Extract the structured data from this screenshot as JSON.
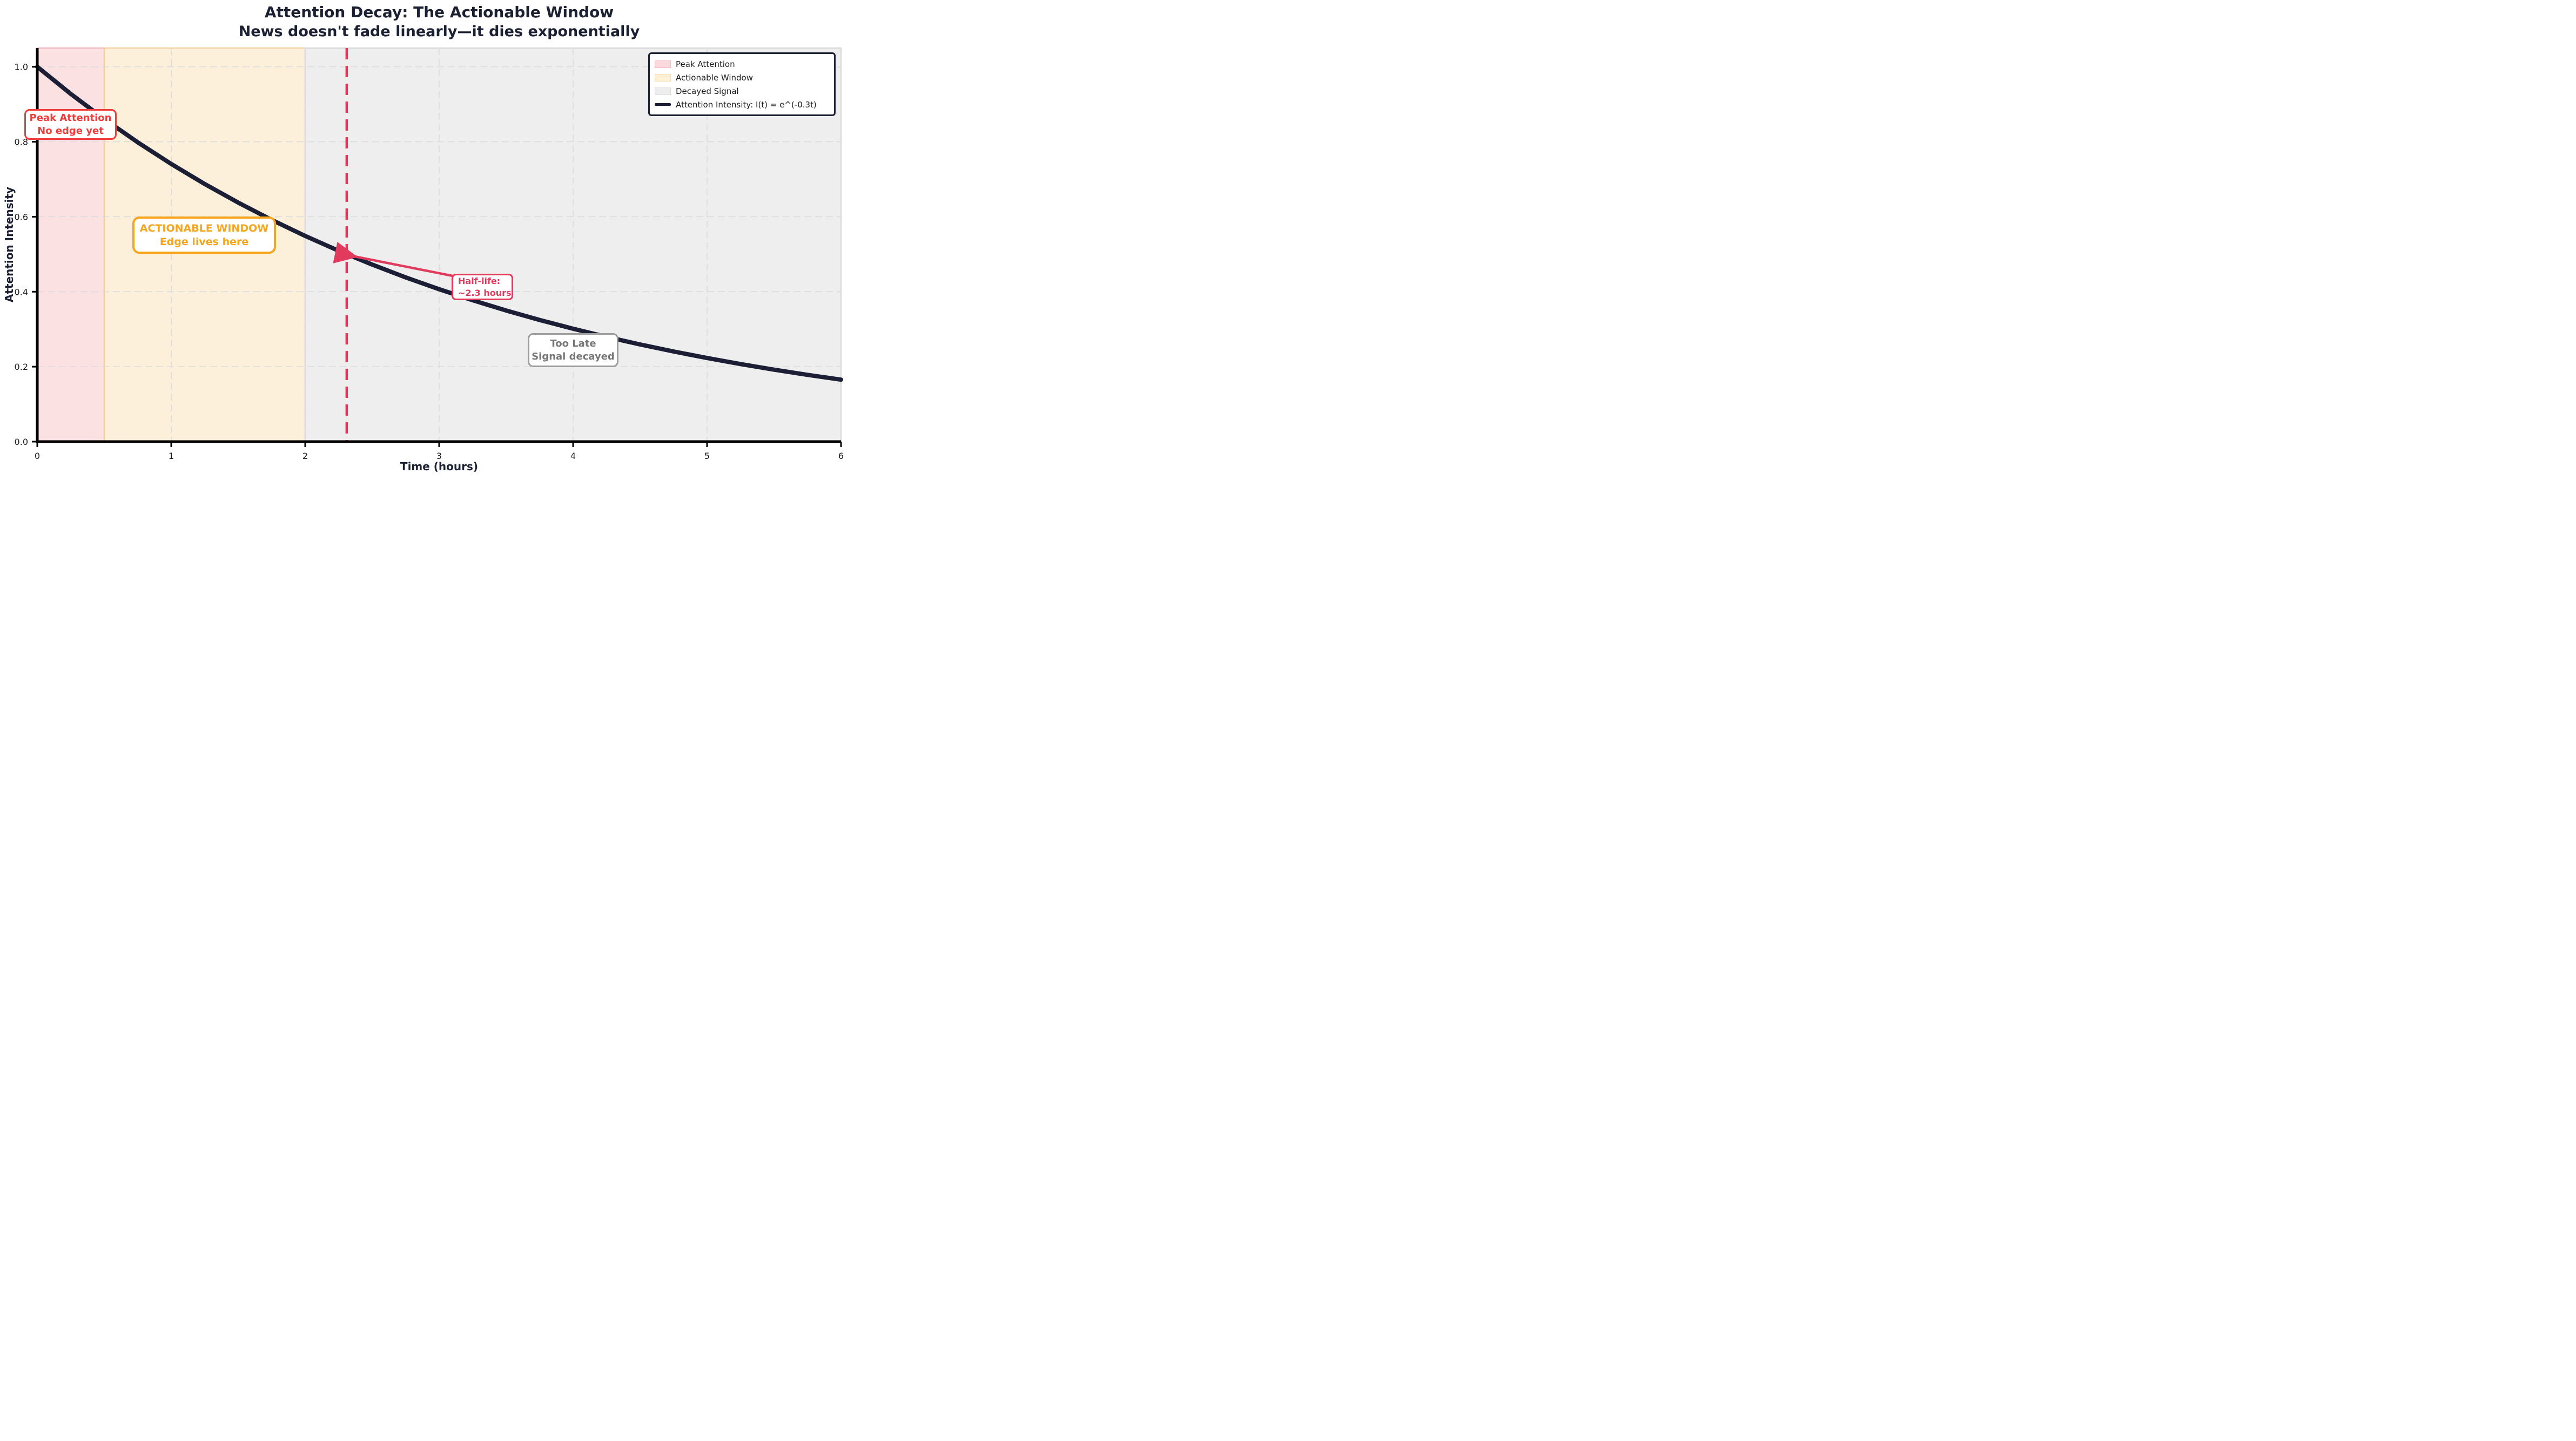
{
  "title": {
    "line1": "Attention Decay: The Actionable Window",
    "line2": "News doesn't fade linearly—it dies exponentially",
    "color": "#1c2033"
  },
  "axes": {
    "xlabel": "Time (hours)",
    "ylabel": "Attention Intensity",
    "label_color": "#1c2033",
    "tick_label_color": "#1a1a1a",
    "spine_color": "#000000",
    "grid_color": "#dcdcdc"
  },
  "chart_data": {
    "type": "line",
    "title": "Attention Decay: The Actionable Window",
    "subtitle": "News doesn't fade linearly—it dies exponentially",
    "xlabel": "Time (hours)",
    "ylabel": "Attention Intensity",
    "xlim": [
      0,
      6
    ],
    "ylim": [
      0,
      1.05
    ],
    "x_ticks": [
      "0",
      "1",
      "2",
      "3",
      "4",
      "5",
      "6"
    ],
    "x_tick_values": [
      0,
      1,
      2,
      3,
      4,
      5,
      6
    ],
    "y_ticks": [
      "0.0",
      "0.2",
      "0.4",
      "0.6",
      "0.8",
      "1.0"
    ],
    "y_tick_values": [
      0.0,
      0.2,
      0.4,
      0.6,
      0.8,
      1.0
    ],
    "grid": true,
    "legend_position": "upper right",
    "series": [
      {
        "name": "Attention Intensity: I(t) = e^(-0.3t)",
        "formula": "I(t) = e^(-0.3t)",
        "decay_rate": 0.3,
        "color": "#1b1e34",
        "x": [
          0,
          0.25,
          0.5,
          0.75,
          1,
          1.25,
          1.5,
          1.75,
          2,
          2.25,
          2.5,
          2.75,
          3,
          3.25,
          3.5,
          3.75,
          4,
          4.25,
          4.5,
          4.75,
          5,
          5.25,
          5.5,
          5.75,
          6
        ],
        "values": [
          1.0,
          0.9277,
          0.8607,
          0.7985,
          0.7408,
          0.6873,
          0.6376,
          0.5916,
          0.5488,
          0.5092,
          0.4724,
          0.4382,
          0.4066,
          0.3772,
          0.3499,
          0.3247,
          0.3012,
          0.2794,
          0.2592,
          0.2405,
          0.2231,
          0.207,
          0.192,
          0.1782,
          0.1653
        ]
      }
    ],
    "regions": [
      {
        "name": "Peak Attention",
        "from": 0,
        "to": 0.5,
        "fill": "#fce1e3",
        "edge": "#f5b9c0"
      },
      {
        "name": "Actionable Window",
        "from": 0.5,
        "to": 2,
        "fill": "#fdf0db",
        "edge": "#f7cfa0"
      },
      {
        "name": "Decayed Signal",
        "from": 2,
        "to": 6,
        "fill": "#eeeeef",
        "edge": "#d9d9d9"
      }
    ],
    "halflife_line": {
      "x": 2.31,
      "color": "#e23a5c",
      "style": "dashed"
    }
  },
  "legend": {
    "items": [
      {
        "label": "Peak Attention",
        "type": "patch",
        "swatch_fill": "#fbd9dd",
        "swatch_edge": "#f5b8c0"
      },
      {
        "label": "Actionable Window",
        "type": "patch",
        "swatch_fill": "#fdf0d6",
        "swatch_edge": "#fadfac"
      },
      {
        "label": "Decayed Signal",
        "type": "patch",
        "swatch_fill": "#ededed",
        "swatch_edge": "#dfdfdf"
      },
      {
        "label": "Attention Intensity: I(t) = e^(-0.3t)",
        "type": "line",
        "swatch_fill": "#1b1e34"
      }
    ]
  },
  "annotations": {
    "peak": {
      "line1": "Peak Attention",
      "line2": "No edge yet",
      "color": "#f23b3b",
      "border": "#f23b3b"
    },
    "actionable": {
      "line1": "ACTIONABLE WINDOW",
      "line2": "Edge lives here",
      "color": "#f7a51c",
      "border": "#f7a51c"
    },
    "halflife": {
      "line1": "Half-life:",
      "line2": "~2.3 hours",
      "color": "#e23a5c",
      "border": "#e23a5c",
      "points_to": {
        "x": 2.31,
        "y": 0.5
      }
    },
    "toolate": {
      "line1": "Too Late",
      "line2": "Signal decayed",
      "color": "#757575",
      "border": "#9e9e9e"
    }
  }
}
